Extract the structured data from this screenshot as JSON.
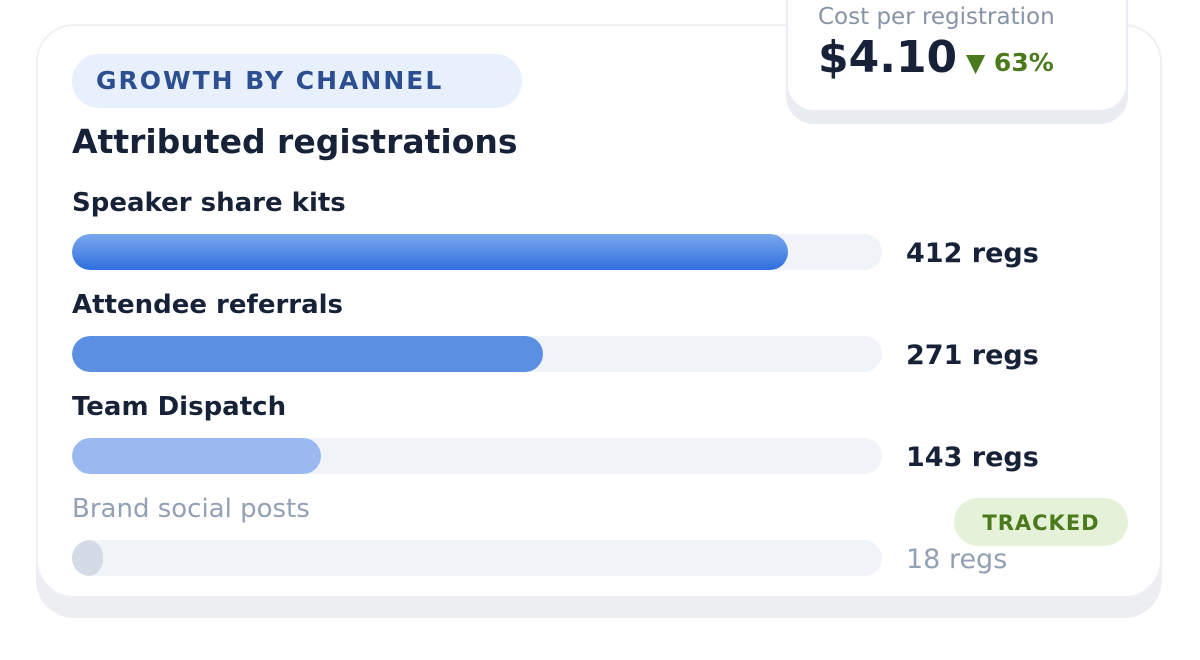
{
  "header": {
    "eyebrow": "GROWTH BY CHANNEL",
    "title": "Attributed registrations"
  },
  "kpi": {
    "label": "Cost per registration",
    "value": "$4.10",
    "delta": "▼ 63%"
  },
  "badge": "TRACKED",
  "colors": {
    "bar_1": "#2f6fdf",
    "bar_2": "#5b8fe2",
    "bar_3": "#9ab9f0",
    "bar_4": "#d5dbe6",
    "track": "#f0f3f8",
    "positive": "#4a7a1c"
  },
  "chart_data": {
    "type": "bar",
    "orientation": "horizontal",
    "title": "Attributed registrations",
    "xlim": [
      0,
      466
    ],
    "grid": false,
    "legend": "none",
    "categories": [
      "Speaker share kits",
      "Attendee referrals",
      "Team Dispatch",
      "Brand social posts"
    ],
    "values": [
      412,
      271,
      143,
      18
    ],
    "value_labels": [
      "412 regs",
      "271 regs",
      "143 regs",
      "18 regs"
    ],
    "muted": [
      false,
      false,
      false,
      true
    ]
  }
}
